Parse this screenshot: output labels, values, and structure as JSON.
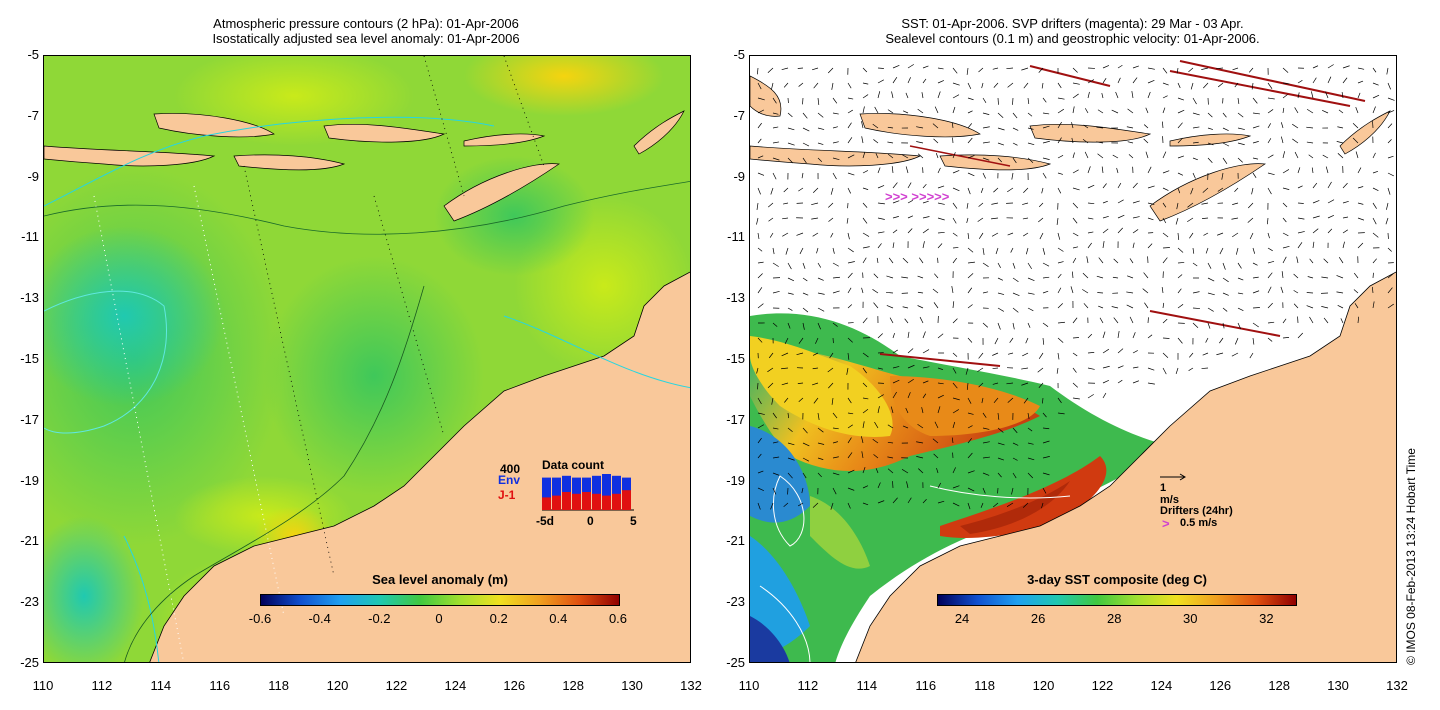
{
  "left_panel": {
    "title_line1": "Atmospheric pressure contours (2 hPa): 01-Apr-2006",
    "title_line2": "Isostatically adjusted sea level anomaly: 01-Apr-2006",
    "colorbar_title": "Sea level anomaly (m)",
    "colorbar_ticks": [
      "-0.6",
      "-0.4",
      "-0.2",
      "0",
      "0.2",
      "0.4",
      "0.6"
    ],
    "inset": {
      "title": "Data count",
      "ymax_label": "400",
      "series_env": "Env",
      "series_j1": "J-1",
      "x_ticks": [
        "-5d",
        "0",
        "5"
      ],
      "env_values": [
        0.9,
        0.9,
        0.95,
        0.9,
        0.9,
        0.95,
        1.0,
        0.95,
        0.9
      ],
      "j1_values": [
        0.35,
        0.4,
        0.5,
        0.45,
        0.5,
        0.45,
        0.4,
        0.45,
        0.55
      ]
    }
  },
  "right_panel": {
    "title_line1": "SST: 01-Apr-2006. SVP drifters (magenta): 29 Mar - 03 Apr.",
    "title_line2": "Sealevel contours (0.1 m) and geostrophic velocity: 01-Apr-2006.",
    "colorbar_title": "3-day SST composite (deg C)",
    "colorbar_ticks": [
      "24",
      "26",
      "28",
      "30",
      "32"
    ],
    "velocity_legend": "1 m/s",
    "drifter_legend_title": "Drifters (24hr)",
    "drifter_legend_value": "0.5 m/s",
    "drifter_glyph": ">"
  },
  "axes": {
    "y_ticks": [
      "-5",
      "-7",
      "-9",
      "-11",
      "-13",
      "-15",
      "-17",
      "-19",
      "-21",
      "-23",
      "-25"
    ],
    "x_ticks": [
      "110",
      "112",
      "114",
      "116",
      "118",
      "120",
      "122",
      "124",
      "126",
      "128",
      "130",
      "132"
    ]
  },
  "watermark": "© IMOS 08-Feb-2013 13:24 Hobart Time",
  "colors": {
    "land": "#f9c89a",
    "ocean_base": "#8fd837",
    "sla_low": "#27c7a8",
    "sla_high": "#f2c21a"
  }
}
